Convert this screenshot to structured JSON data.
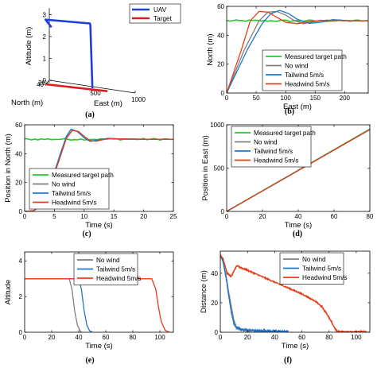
{
  "panel_labels": [
    "(a)",
    "(b)",
    "(c)",
    "(d)",
    "(e)",
    "(f)"
  ],
  "colors": {
    "green": "#22cc22",
    "gray": "#7f7f7f",
    "blue": "#1f78d0",
    "red": "#e0401a",
    "uav": "#1f3fd6",
    "target": "#e01a1a"
  },
  "chart_data": [
    {
      "id": "a",
      "type": "line",
      "projection": "3d",
      "zlabel": "Altitude (m)",
      "ylabel": "North (m)",
      "xlabel": "East (m)",
      "zticks": [
        "0",
        "1",
        "2",
        "3"
      ],
      "yticks": [
        "40",
        "20"
      ],
      "xticks": [
        "500",
        "1000"
      ],
      "legend": [
        "UAV",
        "Target"
      ],
      "legend_position": "top-right",
      "series": [
        {
          "name": "UAV",
          "color": "uav",
          "points": [
            [
              60,
              38,
              2.6
            ],
            [
              0,
              48,
              2.95
            ],
            [
              500,
              30,
              3.0
            ],
            [
              510,
              35,
              2.95
            ],
            [
              530,
              30,
              0.05
            ]
          ]
        },
        {
          "name": "Target",
          "color": "target",
          "points": [
            [
              0,
              50,
              0
            ],
            [
              700,
              25,
              0
            ]
          ]
        }
      ]
    },
    {
      "id": "b",
      "type": "line",
      "xlabel": "East (m)",
      "ylabel": "North (m)",
      "xlim": [
        0,
        240
      ],
      "ylim": [
        0,
        60
      ],
      "xticks": [
        0,
        50,
        100,
        150,
        200
      ],
      "yticks": [
        0,
        20,
        40,
        60
      ],
      "legend": [
        "Measured target path",
        "No wind",
        "Tailwind 5m/s",
        "Headwind 5m/s"
      ],
      "legend_position": "lower-right",
      "series": [
        {
          "name": "Measured target path",
          "color": "green",
          "noise": 0.6,
          "x": [
            0,
            240
          ],
          "y": [
            50,
            50
          ]
        },
        {
          "name": "No wind",
          "color": "gray",
          "x": [
            0,
            30,
            55,
            70,
            85,
            100,
            115,
            130,
            150,
            170,
            200,
            240
          ],
          "y": [
            0,
            30,
            50,
            56,
            56.5,
            54,
            50,
            48,
            49.5,
            50.5,
            50,
            50
          ]
        },
        {
          "name": "Tailwind 5m/s",
          "color": "blue",
          "x": [
            0,
            35,
            60,
            75,
            90,
            105,
            120,
            140,
            160,
            180,
            210,
            240
          ],
          "y": [
            0,
            30,
            48,
            55,
            57.2,
            55,
            51,
            48.2,
            49,
            50.8,
            50,
            50
          ]
        },
        {
          "name": "Headwind 5m/s",
          "color": "red",
          "x": [
            0,
            25,
            40,
            55,
            70,
            85,
            100,
            120,
            140,
            170,
            240
          ],
          "y": [
            0,
            30,
            50,
            56.5,
            56,
            52.5,
            49,
            48,
            49.5,
            50.3,
            50
          ]
        }
      ]
    },
    {
      "id": "c",
      "type": "line",
      "xlabel": "Time (s)",
      "ylabel": "Position in North (m)",
      "xlim": [
        0,
        25
      ],
      "ylim": [
        0,
        60
      ],
      "xticks": [
        0,
        5,
        10,
        15,
        20,
        25
      ],
      "yticks": [
        0,
        20,
        40,
        60
      ],
      "legend": [
        "Measured target path",
        "No wind",
        "Tailwind 5m/s",
        "Headwind 5m/s"
      ],
      "legend_position": "lower-right",
      "series": [
        {
          "name": "Measured target path",
          "color": "green",
          "noise": 0.6,
          "x": [
            0,
            25
          ],
          "y": [
            50,
            50
          ]
        },
        {
          "name": "No wind",
          "color": "gray",
          "x": [
            0,
            1.5,
            3,
            4.5,
            6,
            7,
            8,
            9,
            10,
            11,
            12,
            14,
            16,
            20,
            25
          ],
          "y": [
            0,
            0.5,
            5,
            20,
            38,
            51,
            56.5,
            55,
            51,
            48.5,
            49,
            50.5,
            50.3,
            50,
            50
          ]
        },
        {
          "name": "Tailwind 5m/s",
          "color": "blue",
          "x": [
            0,
            1.5,
            3,
            4.5,
            6,
            7,
            7.8,
            8.8,
            10,
            11,
            12,
            14,
            16,
            20,
            25
          ],
          "y": [
            0,
            0.5,
            5,
            21,
            40,
            52,
            57,
            55.5,
            51,
            48.5,
            49.3,
            50.6,
            50.2,
            50,
            50
          ]
        },
        {
          "name": "Headwind 5m/s",
          "color": "red",
          "x": [
            0,
            1.5,
            3,
            4.5,
            6,
            7,
            8,
            9,
            10,
            11,
            12,
            14,
            16,
            20,
            25
          ],
          "y": [
            0,
            0.5,
            5,
            20,
            38,
            50.5,
            56,
            55.5,
            52,
            49,
            48.6,
            50.4,
            50.2,
            50,
            50
          ]
        }
      ]
    },
    {
      "id": "d",
      "type": "line",
      "xlabel": "Time (s)",
      "ylabel": "Position in East (m)",
      "xlim": [
        0,
        80
      ],
      "ylim": [
        0,
        1000
      ],
      "xticks": [
        0,
        20,
        40,
        60,
        80
      ],
      "yticks": [
        0,
        500,
        1000
      ],
      "legend": [
        "Measured target path",
        "No wind",
        "Tailwind 5m/s",
        "Headwind 5m/s"
      ],
      "legend_position": "top-left",
      "series": [
        {
          "name": "Measured target path",
          "color": "green",
          "x": [
            0,
            80
          ],
          "y": [
            0,
            950
          ]
        },
        {
          "name": "No wind",
          "color": "gray",
          "x": [
            0,
            80
          ],
          "y": [
            0,
            945
          ]
        },
        {
          "name": "Tailwind 5m/s",
          "color": "blue",
          "x": [
            0,
            80
          ],
          "y": [
            0,
            945
          ]
        },
        {
          "name": "Headwind 5m/s",
          "color": "red",
          "x": [
            0,
            80
          ],
          "y": [
            0,
            945
          ]
        }
      ]
    },
    {
      "id": "e",
      "type": "line",
      "xlabel": "Time (s)",
      "ylabel": "Altitude",
      "xlim": [
        0,
        110
      ],
      "ylim": [
        0,
        4.5
      ],
      "xticks": [
        0,
        20,
        40,
        60,
        80,
        100
      ],
      "yticks": [
        0,
        2,
        4
      ],
      "legend": [
        "No wind",
        "Tailwind 5m/s",
        "Headwind 5m/s"
      ],
      "legend_position": "top-center",
      "series": [
        {
          "name": "No wind",
          "color": "gray",
          "x": [
            0,
            33,
            35,
            37,
            39,
            41,
            42
          ],
          "y": [
            3,
            3,
            2.4,
            1.2,
            0.4,
            0.08,
            0
          ]
        },
        {
          "name": "Tailwind 5m/s",
          "color": "blue",
          "x": [
            0,
            40,
            42,
            44,
            46,
            48,
            50
          ],
          "y": [
            3,
            3,
            2.4,
            1.2,
            0.4,
            0.08,
            0
          ]
        },
        {
          "name": "Headwind 5m/s",
          "color": "red",
          "x": [
            0,
            94,
            97,
            99,
            101,
            104,
            107
          ],
          "y": [
            3,
            3,
            2.4,
            1.4,
            0.6,
            0.1,
            0
          ]
        }
      ]
    },
    {
      "id": "f",
      "type": "line",
      "xlabel": "Time (s)",
      "ylabel": "Distance (m)",
      "xlim": [
        0,
        110
      ],
      "ylim": [
        0,
        55
      ],
      "xticks": [
        0,
        20,
        40,
        60,
        80,
        100
      ],
      "yticks": [
        0,
        20,
        40
      ],
      "legend": [
        "No wind",
        "Tailwind 5m/s",
        "Headwind 5m/s"
      ],
      "legend_position": "top-right",
      "series": [
        {
          "name": "No wind",
          "color": "gray",
          "noise": 0.4,
          "x": [
            0,
            2,
            4,
            6,
            8,
            10,
            12,
            15,
            20,
            30,
            40,
            44
          ],
          "y": [
            52,
            48,
            40,
            28,
            18,
            8,
            3,
            1.5,
            1,
            0.8,
            0.5,
            0.2
          ]
        },
        {
          "name": "Tailwind 5m/s",
          "color": "blue",
          "noise": 0.6,
          "x": [
            0,
            2,
            4,
            6,
            8,
            10,
            11,
            13,
            15,
            20,
            30,
            40,
            50
          ],
          "y": [
            52,
            48,
            38,
            26,
            14,
            6,
            4,
            3,
            2,
            1.5,
            1,
            0.8,
            0.5
          ]
        },
        {
          "name": "Headwind 5m/s",
          "color": "red",
          "noise": 0.4,
          "x": [
            0,
            2,
            5,
            8,
            12,
            20,
            30,
            40,
            50,
            60,
            70,
            75,
            80,
            84,
            86,
            90,
            100,
            108
          ],
          "y": [
            52,
            50,
            40,
            38,
            45,
            42,
            38,
            34,
            30,
            26,
            21,
            17,
            10,
            3,
            0.5,
            0.3,
            0.3,
            0.3
          ]
        }
      ]
    }
  ]
}
